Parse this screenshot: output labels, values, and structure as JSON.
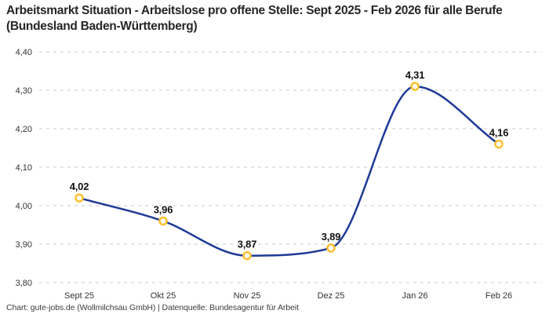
{
  "header": {
    "title": "Arbeitsmarkt Situation - Arbeitslose pro offene Stelle: Sept 2025 - Feb 2026 für alle Berufe (Bundesland Baden-Württemberg)"
  },
  "chart_data": {
    "type": "line",
    "title": "Arbeitsmarkt Situation - Arbeitslose pro offene Stelle: Sept 2025 - Feb 2026 für alle Berufe (Bundesland Baden-Württemberg)",
    "categories": [
      "Sept 25",
      "Okt 25",
      "Nov 25",
      "Dez 25",
      "Jan 26",
      "Feb 26"
    ],
    "values": [
      4.02,
      3.96,
      3.87,
      3.89,
      4.31,
      4.16
    ],
    "point_labels": [
      "4,02",
      "3,96",
      "3,87",
      "3,89",
      "4,31",
      "4,16"
    ],
    "ylim": [
      3.8,
      4.4
    ],
    "ytick_step": 0.1,
    "ytick_labels": [
      "3,80",
      "3,90",
      "4,00",
      "4,10",
      "4,20",
      "4,30",
      "4,40"
    ],
    "xlabel": "",
    "ylabel": "",
    "grid": "horizontal-dashed",
    "legend": "none",
    "line_color": "#1e3a96",
    "marker_color": "#fcc02e",
    "gridline_color": "#c9c9c9",
    "smooth": true
  },
  "footer": {
    "text": "Chart: gute-jobs.de (Wollmilchsau GmbH) | Datenquelle: Bundesagentur für Arbeit"
  }
}
